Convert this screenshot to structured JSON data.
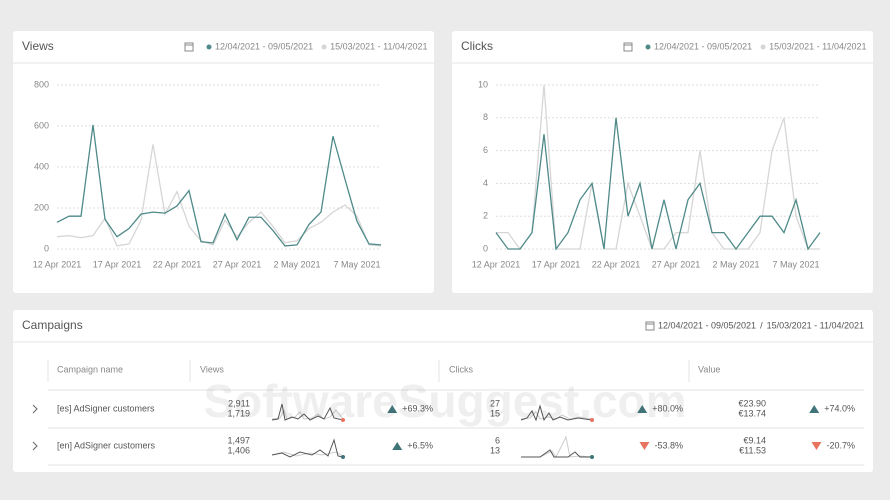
{
  "chart_data": [
    {
      "type": "line",
      "title": "Views",
      "categories": [
        "12 Apr 2021",
        null,
        null,
        null,
        null,
        "17 Apr 2021",
        null,
        null,
        null,
        null,
        "22 Apr 2021",
        null,
        null,
        null,
        null,
        "27 Apr 2021",
        null,
        null,
        null,
        null,
        "2 May 2021",
        null,
        null,
        null,
        null,
        "7 May 2021",
        null,
        null
      ],
      "series": [
        {
          "name": "12/04/2021 - 09/05/2021",
          "color": "#4f8a89",
          "values": [
            130,
            160,
            160,
            605,
            145,
            60,
            100,
            170,
            180,
            175,
            210,
            285,
            35,
            30,
            170,
            45,
            155,
            155,
            90,
            15,
            20,
            120,
            180,
            550,
            340,
            135,
            25,
            20
          ]
        },
        {
          "name": "15/03/2021 - 11/04/2021",
          "color": "#d6d6d6",
          "values": [
            60,
            65,
            55,
            65,
            150,
            15,
            25,
            140,
            510,
            170,
            280,
            110,
            40,
            20,
            140,
            60,
            130,
            180,
            110,
            30,
            40,
            100,
            130,
            180,
            215,
            160,
            20,
            15
          ]
        }
      ],
      "ylim": [
        0,
        800
      ],
      "yticks": [
        0,
        200,
        400,
        600,
        800
      ],
      "grid": true
    },
    {
      "type": "line",
      "title": "Clicks",
      "categories": [
        "12 Apr 2021",
        null,
        null,
        null,
        null,
        "17 Apr 2021",
        null,
        null,
        null,
        null,
        "22 Apr 2021",
        null,
        null,
        null,
        null,
        "27 Apr 2021",
        null,
        null,
        null,
        null,
        "2 May 2021",
        null,
        null,
        null,
        null,
        "7 May 2021",
        null,
        null
      ],
      "series": [
        {
          "name": "12/04/2021 - 09/05/2021",
          "color": "#4f8a89",
          "values": [
            1,
            0,
            0,
            1,
            7,
            0,
            1,
            3,
            4,
            0,
            8,
            2,
            4,
            0,
            3,
            0,
            3,
            4,
            1,
            1,
            0,
            1,
            2,
            2,
            1,
            3,
            0,
            1
          ]
        },
        {
          "name": "15/03/2021 - 11/04/2021",
          "color": "#d6d6d6",
          "values": [
            1,
            1,
            0,
            1,
            10,
            0,
            0,
            0,
            4,
            0,
            0,
            4,
            2,
            0,
            0,
            1,
            1,
            6,
            1,
            0,
            0,
            0,
            1,
            6,
            8,
            2,
            0,
            0
          ]
        }
      ],
      "ylim": [
        0,
        10
      ],
      "yticks": [
        0,
        2,
        4,
        6,
        8,
        10
      ],
      "grid": true
    }
  ],
  "campaigns": {
    "title": "Campaigns",
    "current_range": "12/04/2021 - 09/05/2021",
    "separator": "/",
    "previous_range": "15/03/2021 - 11/04/2021",
    "columns": [
      "Campaign name",
      "Views",
      "Clicks",
      "Value"
    ],
    "rows": [
      {
        "name": "[es] AdSigner customers",
        "views": [
          "2,911",
          "1,719",
          "+69.3%"
        ],
        "clicks": [
          "27",
          "15",
          "+80.0%"
        ],
        "value": [
          "€23.90",
          "€13.74",
          "+74.0%"
        ]
      },
      {
        "name": "[en] AdSigner customers",
        "views": [
          "1,497",
          "1,406",
          "+6.5%"
        ],
        "clicks": [
          "6",
          "13",
          "-53.8%"
        ],
        "value": [
          "€9.14",
          "€11.53",
          "-20.7%"
        ]
      }
    ]
  },
  "watermark": "SoftwareSuggest.com"
}
